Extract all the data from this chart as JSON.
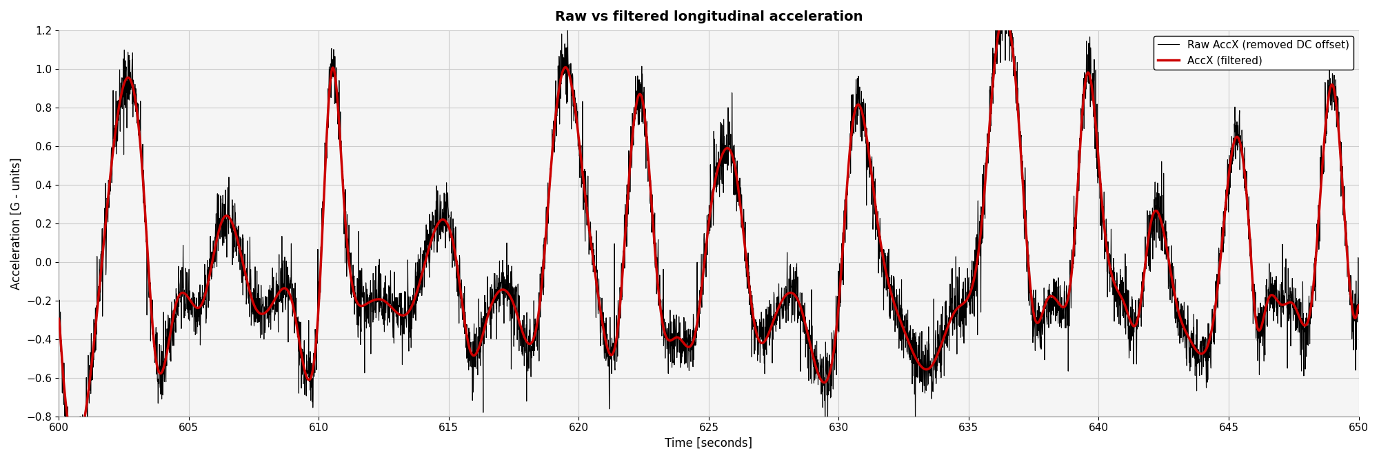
{
  "title": "Raw vs filtered longitudinal acceleration",
  "xlabel": "Time [seconds]",
  "ylabel": "Acceleration [G - units]",
  "xlim": [
    600,
    650
  ],
  "ylim": [
    -0.8,
    1.2
  ],
  "xticks": [
    600,
    605,
    610,
    615,
    620,
    625,
    630,
    635,
    640,
    645,
    650
  ],
  "yticks": [
    -0.8,
    -0.6,
    -0.4,
    -0.2,
    0,
    0.2,
    0.4,
    0.6,
    0.8,
    1.0,
    1.2
  ],
  "raw_color": "#000000",
  "filtered_color": "#cc0000",
  "raw_label": "Raw AccX (removed DC offset)",
  "filtered_label": "AccX (filtered)",
  "raw_linewidth": 0.8,
  "filtered_linewidth": 2.5,
  "legend_loc": "upper right",
  "title_fontsize": 14,
  "axis_fontsize": 12,
  "tick_fontsize": 11,
  "grid_color": "#cccccc",
  "bg_color": "#f5f5f5",
  "sample_rate": 100,
  "duration": 50
}
